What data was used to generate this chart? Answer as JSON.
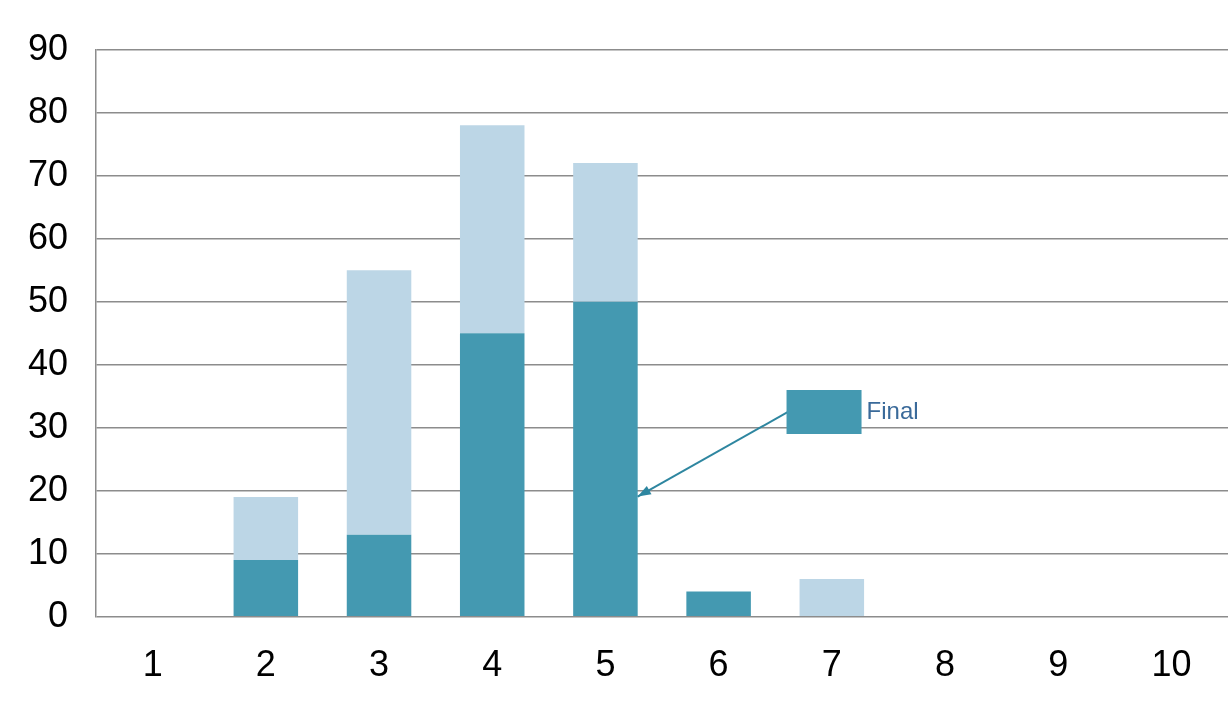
{
  "chart_data": {
    "type": "bar",
    "stacked": true,
    "categories": [
      "1",
      "2",
      "3",
      "4",
      "5",
      "6",
      "7",
      "8",
      "9",
      "10"
    ],
    "series": [
      {
        "name": "Final",
        "color": "#4499b1",
        "values": [
          null,
          9,
          13,
          45,
          50,
          4,
          null,
          null,
          null,
          null
        ]
      },
      {
        "color": "#bcd6e6",
        "values": [
          null,
          10,
          42,
          33,
          22,
          null,
          6,
          null,
          null,
          null
        ]
      }
    ],
    "ylim": [
      0,
      90
    ],
    "yticks": [
      0,
      10,
      20,
      30,
      40,
      50,
      60,
      70,
      80,
      90
    ],
    "grid": "y",
    "legend": "right"
  }
}
